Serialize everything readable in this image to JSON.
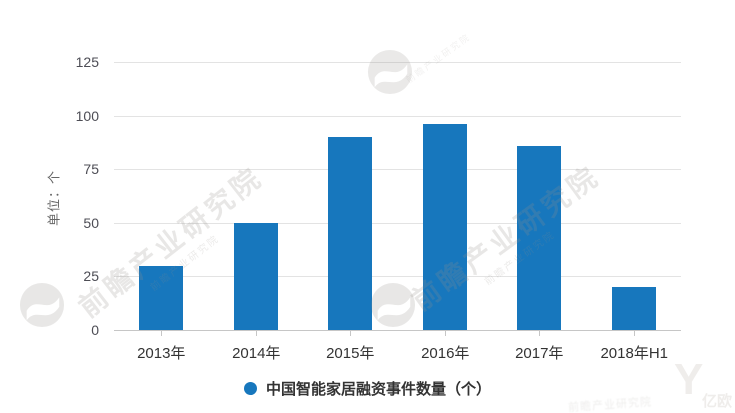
{
  "chart_data": {
    "type": "bar",
    "categories": [
      "2013年",
      "2014年",
      "2015年",
      "2016年",
      "2017年",
      "2018年H1"
    ],
    "values": [
      30,
      50,
      90,
      96,
      86,
      20
    ],
    "series_name": "中国智能家居融资事件数量（个）",
    "ylabel": "单位：个",
    "yticks": [
      0,
      25,
      50,
      75,
      100,
      125
    ],
    "ylim": [
      0,
      125
    ],
    "grid": true,
    "legend_position": "bottom",
    "bar_color": "#1777bd",
    "axis_text_color": "#4d4d55",
    "gridline_color": "#e3e3e3"
  },
  "legend": {
    "label": "中国智能家居融资事件数量（个）"
  },
  "watermarks": {
    "brand_text": "前瞻产业研究院",
    "secondary_brand": "亿欧"
  }
}
